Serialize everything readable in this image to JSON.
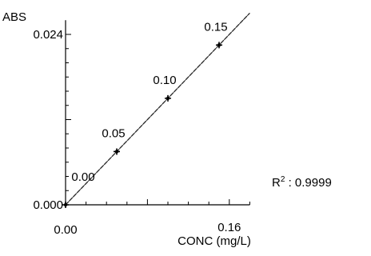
{
  "chart_data": {
    "type": "scatter",
    "title": "",
    "xlabel": "CONC (mg/L)",
    "ylabel": "ABS",
    "xlim": [
      0,
      0.18
    ],
    "ylim": [
      0,
      0.026
    ],
    "x_tick_labels": [
      "0.00",
      "0.16"
    ],
    "y_tick_labels": [
      "0.000",
      "0.024"
    ],
    "series": [
      {
        "points": [
          {
            "x": 0.0,
            "y": 0.0,
            "label": "0.00"
          },
          {
            "x": 0.05,
            "y": 0.0075,
            "label": "0.05"
          },
          {
            "x": 0.1,
            "y": 0.015,
            "label": "0.10"
          },
          {
            "x": 0.15,
            "y": 0.0225,
            "label": "0.15"
          }
        ]
      }
    ],
    "fit_line": {
      "slope": 0.15,
      "intercept": 0.0
    },
    "annotation": {
      "r2_label": "R",
      "r2_superscript": "2",
      "r2_value": " : 0.9999"
    },
    "grid": false,
    "legend": "none",
    "colors": {
      "line": "#000000",
      "fit": "#888888",
      "axis": "#000000"
    }
  }
}
